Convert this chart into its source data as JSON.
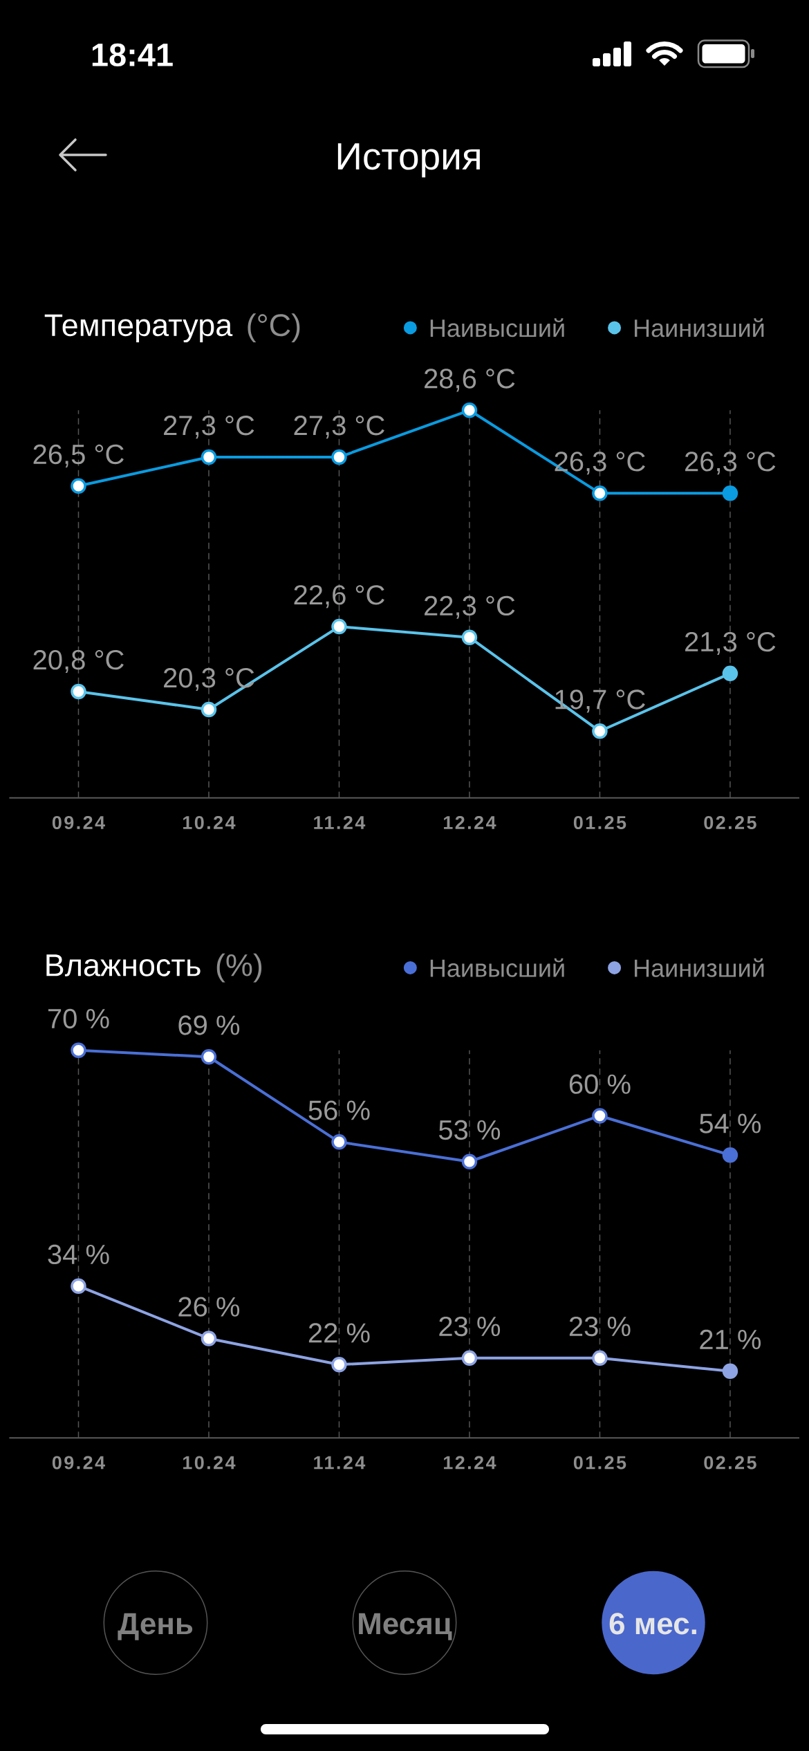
{
  "chart_data": [
    {
      "type": "other",
      "title": "История",
      "annotations": [
        "18:41"
      ]
    },
    {
      "type": "line",
      "title": "Температура",
      "ylabel": "(°C)",
      "categories": [
        "09.24",
        "10.24",
        "11.24",
        "12.24",
        "01.25",
        "02.25"
      ],
      "series": [
        {
          "name": "Наивысший",
          "color": "#0a9be0",
          "values": [
            26.5,
            27.3,
            27.3,
            28.6,
            26.3,
            26.3
          ],
          "value_labels": [
            "26,5 °C",
            "27,3 °C",
            "27,3 °C",
            "28,6 °C",
            "26,3 °C",
            "26,3 °C"
          ]
        },
        {
          "name": "Наинизший",
          "color": "#5ac3ea",
          "values": [
            20.8,
            20.3,
            22.6,
            22.3,
            19.7,
            21.3
          ],
          "value_labels": [
            "20,8 °C",
            "20,3 °C",
            "22,6 °C",
            "22,3 °C",
            "19,7 °C",
            "21,3 °C"
          ]
        }
      ],
      "legend": "top right",
      "grid": "x",
      "marker": "circle",
      "tick_labels": "x"
    },
    {
      "type": "line",
      "title": "Влажность",
      "ylabel": "(%)",
      "categories": [
        "09.24",
        "10.24",
        "11.24",
        "12.24",
        "01.25",
        "02.25"
      ],
      "series": [
        {
          "name": "Наивысший",
          "color": "#4a6fd6",
          "values": [
            70,
            69,
            56,
            53,
            60,
            54
          ],
          "value_labels": [
            "70 %",
            "69 %",
            "56 %",
            "53 %",
            "60 %",
            "54 %"
          ]
        },
        {
          "name": "Наинизший",
          "color": "#8da3e3",
          "values": [
            34,
            26,
            22,
            23,
            23,
            21
          ],
          "value_labels": [
            "34 %",
            "26 %",
            "22 %",
            "23 %",
            "23 %",
            "21 %"
          ]
        }
      ],
      "legend": "top right",
      "grid": "x",
      "marker": "circle",
      "tick_labels": "x"
    },
    {
      "type": "other",
      "annotations": [
        "День",
        "Месяц",
        "6 мес."
      ]
    }
  ]
}
